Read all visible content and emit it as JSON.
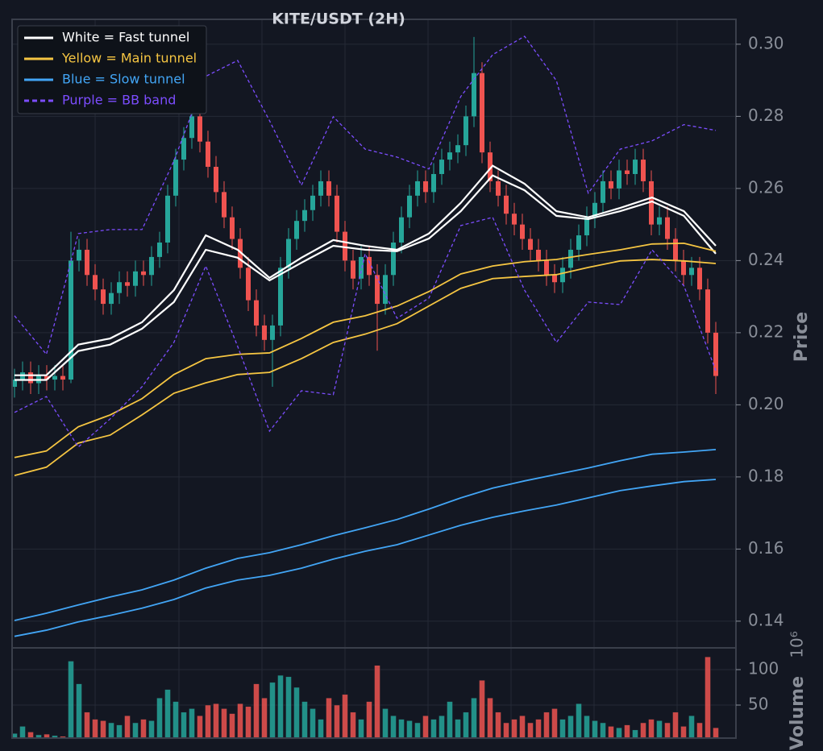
{
  "chart_data": [
    {
      "type": "candlestick",
      "title": "KITE/USDT (2H)",
      "ylabel": "Price",
      "ylim": [
        0.1326,
        0.3069
      ],
      "yticks": [
        0.14,
        0.16,
        0.18,
        {
          "value": 0.2,
          "label": "0.20"
        },
        0.22,
        0.24,
        0.26,
        0.28,
        {
          "value": 0.3,
          "label": "0.30"
        }
      ],
      "grid": true,
      "legend": "upper left",
      "up_color": "#26a69a",
      "down_color": "#ef5350",
      "candles": {
        "open": [
          0.205,
          0.207,
          0.209,
          0.206,
          0.208,
          0.207,
          0.208,
          0.207,
          0.24,
          0.243,
          0.236,
          0.232,
          0.228,
          0.231,
          0.234,
          0.233,
          0.237,
          0.236,
          0.241,
          0.245,
          0.258,
          0.268,
          0.274,
          0.28,
          0.273,
          0.266,
          0.259,
          0.252,
          0.246,
          0.238,
          0.229,
          0.222,
          0.218,
          0.222,
          0.238,
          0.246,
          0.251,
          0.254,
          0.258,
          0.262,
          0.258,
          0.248,
          0.24,
          0.235,
          0.241,
          0.236,
          0.228,
          0.236,
          0.245,
          0.252,
          0.258,
          0.262,
          0.259,
          0.264,
          0.268,
          0.27,
          0.272,
          0.28,
          0.292,
          0.27,
          0.262,
          0.258,
          0.253,
          0.25,
          0.246,
          0.243,
          0.24,
          0.236,
          0.234,
          0.238,
          0.243,
          0.247,
          0.252,
          0.256,
          0.262,
          0.26,
          0.265,
          0.264,
          0.268,
          0.262,
          0.25,
          0.252,
          0.246,
          0.24,
          0.236,
          0.238,
          0.232,
          0.22
        ],
        "high": [
          0.21,
          0.212,
          0.212,
          0.211,
          0.211,
          0.211,
          0.211,
          0.248,
          0.246,
          0.246,
          0.239,
          0.235,
          0.234,
          0.237,
          0.237,
          0.24,
          0.24,
          0.244,
          0.248,
          0.261,
          0.271,
          0.277,
          0.29,
          0.283,
          0.276,
          0.269,
          0.262,
          0.255,
          0.249,
          0.241,
          0.232,
          0.225,
          0.225,
          0.241,
          0.249,
          0.254,
          0.257,
          0.261,
          0.265,
          0.265,
          0.261,
          0.251,
          0.243,
          0.244,
          0.244,
          0.239,
          0.239,
          0.248,
          0.255,
          0.261,
          0.265,
          0.265,
          0.267,
          0.271,
          0.273,
          0.275,
          0.283,
          0.302,
          0.295,
          0.273,
          0.265,
          0.261,
          0.256,
          0.253,
          0.249,
          0.246,
          0.243,
          0.239,
          0.241,
          0.246,
          0.25,
          0.255,
          0.259,
          0.265,
          0.265,
          0.268,
          0.268,
          0.271,
          0.271,
          0.265,
          0.255,
          0.255,
          0.249,
          0.243,
          0.241,
          0.241,
          0.235,
          0.223
        ],
        "low": [
          0.202,
          0.204,
          0.203,
          0.203,
          0.204,
          0.204,
          0.204,
          0.206,
          0.237,
          0.233,
          0.229,
          0.225,
          0.225,
          0.228,
          0.23,
          0.23,
          0.233,
          0.233,
          0.238,
          0.242,
          0.255,
          0.265,
          0.271,
          0.27,
          0.263,
          0.256,
          0.249,
          0.243,
          0.235,
          0.226,
          0.219,
          0.215,
          0.205,
          0.219,
          0.235,
          0.243,
          0.248,
          0.251,
          0.255,
          0.255,
          0.245,
          0.237,
          0.232,
          0.232,
          0.233,
          0.215,
          0.225,
          0.233,
          0.242,
          0.249,
          0.255,
          0.256,
          0.256,
          0.261,
          0.265,
          0.267,
          0.269,
          0.277,
          0.267,
          0.259,
          0.255,
          0.25,
          0.247,
          0.243,
          0.24,
          0.237,
          0.233,
          0.231,
          0.231,
          0.235,
          0.24,
          0.244,
          0.249,
          0.253,
          0.257,
          0.257,
          0.261,
          0.261,
          0.259,
          0.247,
          0.247,
          0.243,
          0.237,
          0.233,
          0.233,
          0.229,
          0.217,
          0.203
        ],
        "close": [
          0.207,
          0.209,
          0.206,
          0.208,
          0.207,
          0.208,
          0.207,
          0.24,
          0.243,
          0.236,
          0.232,
          0.228,
          0.231,
          0.234,
          0.233,
          0.237,
          0.236,
          0.241,
          0.245,
          0.258,
          0.268,
          0.274,
          0.28,
          0.273,
          0.266,
          0.259,
          0.252,
          0.246,
          0.238,
          0.229,
          0.222,
          0.218,
          0.222,
          0.238,
          0.246,
          0.251,
          0.254,
          0.258,
          0.262,
          0.258,
          0.248,
          0.24,
          0.235,
          0.241,
          0.236,
          0.228,
          0.236,
          0.245,
          0.252,
          0.258,
          0.262,
          0.259,
          0.264,
          0.268,
          0.27,
          0.272,
          0.28,
          0.292,
          0.27,
          0.262,
          0.258,
          0.253,
          0.25,
          0.246,
          0.243,
          0.24,
          0.236,
          0.234,
          0.238,
          0.243,
          0.247,
          0.252,
          0.256,
          0.262,
          0.26,
          0.265,
          0.264,
          0.268,
          0.262,
          0.25,
          0.252,
          0.246,
          0.24,
          0.236,
          0.238,
          0.232,
          0.22,
          0.208
        ]
      },
      "series": [
        {
          "name": "White = Fast tunnel",
          "color": "#ffffff",
          "linestyle": "solid",
          "upper": [
            0.2082,
            0.2082,
            0.2167,
            0.2184,
            0.2229,
            0.2318,
            0.247,
            0.243,
            0.2352,
            0.2408,
            0.2457,
            0.2441,
            0.243,
            0.2475,
            0.256,
            0.2663,
            0.2613,
            0.2537,
            0.252,
            0.2546,
            0.2575,
            0.2537,
            0.2441
          ],
          "lower": [
            0.2069,
            0.2069,
            0.2149,
            0.2167,
            0.2211,
            0.2285,
            0.243,
            0.2408,
            0.2345,
            0.2394,
            0.2441,
            0.243,
            0.2426,
            0.2461,
            0.2537,
            0.2636,
            0.2595,
            0.2524,
            0.2515,
            0.2537,
            0.2564,
            0.2524,
            0.2419
          ]
        },
        {
          "name": "Yellow = Main tunnel",
          "color": "#f5c542",
          "linestyle": "solid",
          "upper": [
            0.1854,
            0.1872,
            0.1939,
            0.1972,
            0.2017,
            0.2084,
            0.2128,
            0.214,
            0.2144,
            0.2184,
            0.2229,
            0.2247,
            0.2274,
            0.2314,
            0.2363,
            0.2385,
            0.2397,
            0.2403,
            0.2417,
            0.243,
            0.2446,
            0.2448,
            0.2426
          ],
          "lower": [
            0.1804,
            0.1827,
            0.1894,
            0.1916,
            0.1972,
            0.2032,
            0.2061,
            0.2084,
            0.209,
            0.2128,
            0.2173,
            0.2196,
            0.2225,
            0.2274,
            0.2323,
            0.235,
            0.2356,
            0.2361,
            0.2381,
            0.2399,
            0.2403,
            0.2399,
            0.2392
          ]
        },
        {
          "name": "Blue = Slow tunnel",
          "color": "#42a5f5",
          "linestyle": "solid",
          "upper": [
            0.1402,
            0.1422,
            0.1445,
            0.1467,
            0.1487,
            0.1514,
            0.1547,
            0.1574,
            0.159,
            0.1612,
            0.1637,
            0.1659,
            0.1682,
            0.1711,
            0.1742,
            0.1769,
            0.1789,
            0.1807,
            0.1825,
            0.1845,
            0.1863,
            0.1869,
            0.1876
          ],
          "lower": [
            0.1358,
            0.1375,
            0.1398,
            0.1416,
            0.1436,
            0.146,
            0.1492,
            0.1514,
            0.1527,
            0.1547,
            0.1572,
            0.1594,
            0.1612,
            0.1639,
            0.1666,
            0.1688,
            0.1706,
            0.1722,
            0.1742,
            0.1762,
            0.1775,
            0.1787,
            0.1793
          ]
        },
        {
          "name": "Purple = BB band",
          "color": "#7c4dff",
          "linestyle": "dashed",
          "upper": [
            0.2247,
            0.214,
            0.2475,
            0.2486,
            0.2486,
            0.2676,
            0.2911,
            0.2955,
            0.2788,
            0.2609,
            0.2799,
            0.2709,
            0.2687,
            0.2654,
            0.2855,
            0.2971,
            0.3022,
            0.2899,
            0.2587,
            0.2709,
            0.2732,
            0.2777,
            0.2761
          ],
          "lower": [
            0.1979,
            0.2023,
            0.1883,
            0.1961,
            0.205,
            0.2173,
            0.2385,
            0.2162,
            0.1927,
            0.2039,
            0.2028,
            0.2419,
            0.224,
            0.2296,
            0.2497,
            0.252,
            0.2318,
            0.2173,
            0.2285,
            0.2278,
            0.243,
            0.233,
            0.2095
          ]
        }
      ]
    },
    {
      "type": "bar",
      "ylabel": "Volume",
      "offset_label": "10⁶",
      "ylim": [
        3.4,
        130.7
      ],
      "yticks": [
        50,
        100
      ],
      "grid": true,
      "values": [
        10,
        20,
        12,
        8,
        9,
        7,
        6,
        112,
        80,
        40,
        30,
        28,
        25,
        22,
        35,
        25,
        30,
        28,
        60,
        72,
        55,
        40,
        45,
        35,
        50,
        52,
        45,
        38,
        52,
        48,
        80,
        60,
        82,
        92,
        90,
        75,
        55,
        45,
        30,
        60,
        50,
        65,
        40,
        30,
        55,
        106,
        45,
        35,
        30,
        28,
        25,
        35,
        30,
        35,
        55,
        30,
        40,
        60,
        85,
        60,
        40,
        25,
        30,
        35,
        25,
        30,
        40,
        45,
        30,
        35,
        52,
        35,
        28,
        25,
        20,
        18,
        22,
        15,
        25,
        30,
        28,
        25,
        40,
        20,
        35,
        25,
        118,
        18
      ]
    }
  ]
}
